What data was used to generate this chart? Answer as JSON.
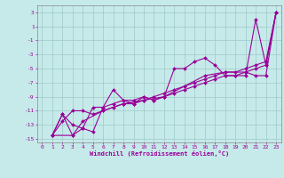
{
  "xlabel": "Windchill (Refroidissement éolien,°C)",
  "bg_color": "#c6e9e9",
  "grid_color": "#a0c8c8",
  "line_color": "#990099",
  "xlim": [
    -0.5,
    23.5
  ],
  "ylim": [
    -15.5,
    4.0
  ],
  "xticks": [
    0,
    1,
    2,
    3,
    4,
    5,
    6,
    7,
    8,
    9,
    10,
    11,
    12,
    13,
    14,
    15,
    16,
    17,
    18,
    19,
    20,
    21,
    22,
    23
  ],
  "yticks": [
    3,
    1,
    -1,
    -3,
    -5,
    -7,
    -9,
    -11,
    -13,
    -15
  ],
  "series1": [
    [
      1,
      -14.5
    ],
    [
      2,
      -11.5
    ],
    [
      3,
      -14.5
    ],
    [
      4,
      -13.5
    ],
    [
      5,
      -14.0
    ],
    [
      6,
      -10.5
    ],
    [
      7,
      -8.0
    ],
    [
      8,
      -9.5
    ],
    [
      9,
      -10.0
    ],
    [
      10,
      -9.0
    ],
    [
      11,
      -9.5
    ],
    [
      12,
      -9.0
    ],
    [
      13,
      -5.0
    ],
    [
      14,
      -5.0
    ],
    [
      15,
      -4.0
    ],
    [
      16,
      -3.5
    ],
    [
      17,
      -4.5
    ],
    [
      18,
      -6.0
    ],
    [
      19,
      -6.0
    ],
    [
      20,
      -6.0
    ],
    [
      21,
      2.0
    ],
    [
      22,
      -4.5
    ],
    [
      23,
      3.0
    ]
  ],
  "series2": [
    [
      1,
      -14.5
    ],
    [
      2,
      -12.5
    ],
    [
      3,
      -11.0
    ],
    [
      4,
      -11.0
    ],
    [
      5,
      -11.5
    ],
    [
      6,
      -11.0
    ],
    [
      7,
      -10.5
    ],
    [
      8,
      -10.0
    ],
    [
      9,
      -10.0
    ],
    [
      10,
      -9.5
    ],
    [
      11,
      -9.0
    ],
    [
      12,
      -8.5
    ],
    [
      13,
      -8.0
    ],
    [
      14,
      -7.5
    ],
    [
      15,
      -7.0
    ],
    [
      16,
      -6.5
    ],
    [
      17,
      -6.0
    ],
    [
      18,
      -5.5
    ],
    [
      19,
      -5.5
    ],
    [
      20,
      -5.0
    ],
    [
      21,
      -4.5
    ],
    [
      22,
      -4.0
    ],
    [
      23,
      3.0
    ]
  ],
  "series3": [
    [
      1,
      -14.5
    ],
    [
      2,
      -11.5
    ],
    [
      3,
      -13.0
    ],
    [
      4,
      -13.5
    ],
    [
      5,
      -10.5
    ],
    [
      6,
      -10.5
    ],
    [
      7,
      -10.0
    ],
    [
      8,
      -9.5
    ],
    [
      9,
      -9.5
    ],
    [
      10,
      -9.0
    ],
    [
      11,
      -9.5
    ],
    [
      12,
      -9.0
    ],
    [
      13,
      -8.5
    ],
    [
      14,
      -8.0
    ],
    [
      15,
      -7.5
    ],
    [
      16,
      -7.0
    ],
    [
      17,
      -6.5
    ],
    [
      18,
      -6.0
    ],
    [
      19,
      -6.0
    ],
    [
      20,
      -5.5
    ],
    [
      21,
      -5.0
    ],
    [
      22,
      -4.5
    ],
    [
      23,
      3.0
    ]
  ],
  "series4": [
    [
      1,
      -14.5
    ],
    [
      3,
      -14.5
    ],
    [
      4,
      -12.5
    ],
    [
      6,
      -11.0
    ],
    [
      8,
      -10.0
    ],
    [
      10,
      -9.5
    ],
    [
      12,
      -9.0
    ],
    [
      14,
      -7.5
    ],
    [
      16,
      -6.0
    ],
    [
      18,
      -5.5
    ],
    [
      20,
      -5.5
    ],
    [
      21,
      -6.0
    ],
    [
      22,
      -6.0
    ],
    [
      23,
      3.0
    ]
  ]
}
